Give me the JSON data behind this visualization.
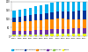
{
  "years": [
    "2004",
    "2005",
    "2006",
    "2007",
    "2008",
    "2009",
    "2010",
    "2011",
    "2012",
    "2013",
    "2014",
    "2015",
    "2016",
    "2017"
  ],
  "series": {
    "STIB_Metro": [
      37,
      39,
      41,
      44,
      47,
      49,
      51,
      54,
      56,
      57,
      57,
      58,
      59,
      61
    ],
    "STIB_Tram": [
      28,
      29,
      30,
      32,
      34,
      35,
      37,
      39,
      41,
      42,
      42,
      44,
      46,
      48
    ],
    "STIB_Bus": [
      52,
      53,
      54,
      55,
      57,
      56,
      57,
      58,
      58,
      57,
      56,
      55,
      54,
      53
    ],
    "TEC": [
      18,
      19,
      20,
      21,
      23,
      24,
      25,
      27,
      28,
      29,
      29,
      30,
      31,
      32
    ],
    "De_Lijn": [
      4,
      4,
      4,
      4,
      5,
      5,
      5,
      5,
      5,
      5,
      5,
      5,
      5,
      5
    ],
    "SNCB": [
      8,
      8,
      8,
      9,
      9,
      9,
      9,
      10,
      10,
      10,
      10,
      10,
      10,
      10
    ]
  },
  "colors": {
    "STIB_Metro": "#00b0f0",
    "STIB_Tram": "#003399",
    "STIB_Bus": "#ff8c00",
    "TEC": "#7030a0",
    "De_Lijn": "#92d050",
    "SNCB": "#ffff00"
  },
  "order": [
    "SNCB",
    "De_Lijn",
    "TEC",
    "STIB_Bus",
    "STIB_Tram",
    "STIB_Metro"
  ],
  "legend_labels": [
    "STIB metro",
    "STIB tram",
    "STIB bus",
    "TEC",
    "De Lijn",
    "SNCB"
  ],
  "legend_keys": [
    "STIB_Metro",
    "STIB_Tram",
    "STIB_Bus",
    "TEC",
    "De_Lijn",
    "SNCB"
  ],
  "ylim": [
    0,
    200
  ],
  "yticks": [
    0,
    50,
    100,
    150,
    200
  ],
  "background_color": "#ffffff",
  "grid_color": "#d0d0d0",
  "bar_width": 0.55
}
